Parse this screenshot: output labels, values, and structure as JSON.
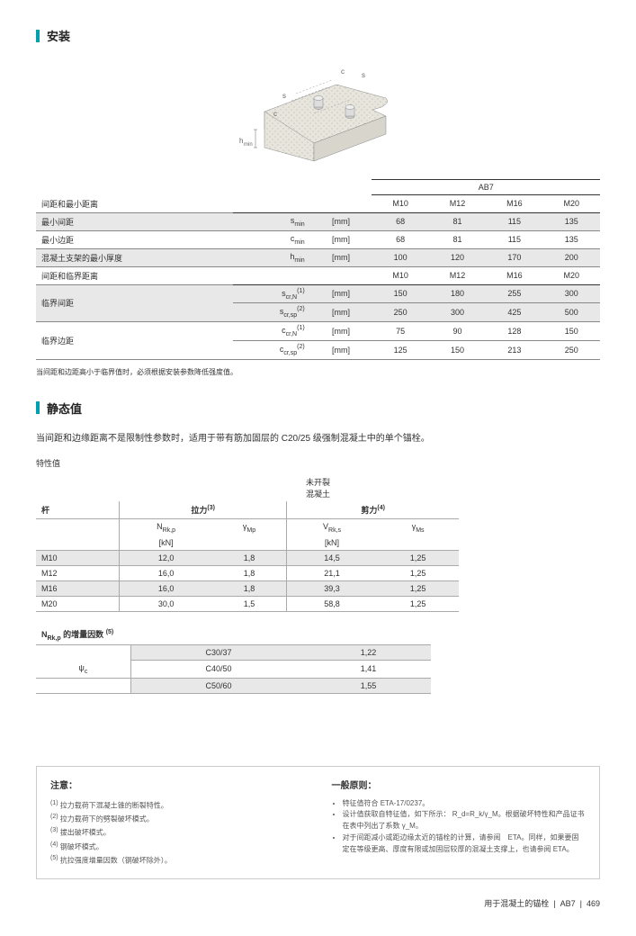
{
  "sections": {
    "install": "安装",
    "static": "静态值"
  },
  "diagram": {
    "labels": {
      "c": "c",
      "s": "s",
      "hmin": "h",
      "hmin_sub": "min"
    }
  },
  "table1": {
    "product": "AB7",
    "header1": "间距和最小距离",
    "sizes": [
      "M10",
      "M12",
      "M16",
      "M20"
    ],
    "rows_a": [
      {
        "label": "最小间距",
        "sym": "s",
        "sub": "min",
        "unit": "[mm]",
        "vals": [
          "68",
          "81",
          "115",
          "135"
        ],
        "shade": true
      },
      {
        "label": "最小边距",
        "sym": "c",
        "sub": "min",
        "unit": "[mm]",
        "vals": [
          "68",
          "81",
          "115",
          "135"
        ],
        "shade": false
      },
      {
        "label": "混凝土支架的最小厚度",
        "sym": "h",
        "sub": "min",
        "unit": "[mm]",
        "vals": [
          "100",
          "120",
          "170",
          "200"
        ],
        "shade": true
      }
    ],
    "header2": "间距和临界距离",
    "rows_b": [
      {
        "label": "临界间距",
        "rows": [
          {
            "sym": "s",
            "sub": "cr,N",
            "sup": "(1)",
            "unit": "[mm]",
            "vals": [
              "150",
              "180",
              "255",
              "300"
            ],
            "shade": true
          },
          {
            "sym": "s",
            "sub": "cr,sp",
            "sup": "(2)",
            "unit": "[mm]",
            "vals": [
              "250",
              "300",
              "425",
              "500"
            ],
            "shade": true
          }
        ]
      },
      {
        "label": "临界边距",
        "rows": [
          {
            "sym": "c",
            "sub": "cr,N",
            "sup": "(1)",
            "unit": "[mm]",
            "vals": [
              "75",
              "90",
              "128",
              "150"
            ],
            "shade": false
          },
          {
            "sym": "c",
            "sub": "cr,sp",
            "sup": "(2)",
            "unit": "[mm]",
            "vals": [
              "125",
              "150",
              "213",
              "250"
            ],
            "shade": false
          }
        ]
      }
    ],
    "note": "当间距和边距高小于临界值时，必须根据安装参数降低强度值。"
  },
  "static_desc": "当间距和边缘距离不是限制性参数时，适用于带有筋加固层的 C20/25 级强制混凝土中的单个锚栓。",
  "char_label": "特性值",
  "table2": {
    "title": "未开裂\n混凝土",
    "col_bar": "杆",
    "col_tension": "拉力",
    "col_tension_sup": "(3)",
    "col_shear": "剪力",
    "col_shear_sup": "(4)",
    "sub_n": "N",
    "sub_n_sub": "Rk,p",
    "sub_gm": "γ",
    "sub_gm_sub": "Mp",
    "sub_v": "V",
    "sub_v_sub": "Rk,s",
    "sub_gms": "γ",
    "sub_gms_sub": "Ms",
    "unit": "[kN]",
    "rows": [
      {
        "size": "M10",
        "n": "12,0",
        "gm": "1,8",
        "v": "14,5",
        "gms": "1,25",
        "shade": true
      },
      {
        "size": "M12",
        "n": "16,0",
        "gm": "1,8",
        "v": "21,1",
        "gms": "1,25",
        "shade": false
      },
      {
        "size": "M16",
        "n": "16,0",
        "gm": "1,8",
        "v": "39,3",
        "gms": "1,25",
        "shade": true
      },
      {
        "size": "M20",
        "n": "30,0",
        "gm": "1,5",
        "v": "58,8",
        "gms": "1,25",
        "shade": false
      }
    ]
  },
  "table3": {
    "title_pre": "N",
    "title_sub": "Rk,p",
    "title_post": " 的增量因数 ",
    "title_sup": "(5)",
    "psi": "ψ",
    "psi_sub": "c",
    "rows": [
      {
        "grade": "C30/37",
        "val": "1,22",
        "shade": true
      },
      {
        "grade": "C40/50",
        "val": "1,41",
        "shade": false
      },
      {
        "grade": "C50/60",
        "val": "1,55",
        "shade": true
      }
    ]
  },
  "notes": {
    "left_title": "注意：",
    "left": [
      "拉力载荷下混凝土锥的断裂特性。",
      "拉力载荷下的劈裂破坏模式。",
      "拔出破坏模式。",
      "钢破坏模式。",
      "抗拉强度增量因数（钢破坏除外）。"
    ],
    "right_title": "一般原则：",
    "right": [
      "特征值符合 ETA-17/0237。",
      "设计值获取自特征值，如下所示： R_d=R_k/γ_M。根据破坏特性和产品证书在表中列出了系数 γ_M。",
      "对于间距减小或距边缘太近的锚栓的计算，请参阅　ETA。同样，如果要固定在等级更高、厚度有限或加固层较厚的混凝土支撑上，也请参阅 ETA。"
    ]
  },
  "footer": {
    "text": "用于混凝土的锚栓",
    "prod": "AB7",
    "page": "469"
  }
}
